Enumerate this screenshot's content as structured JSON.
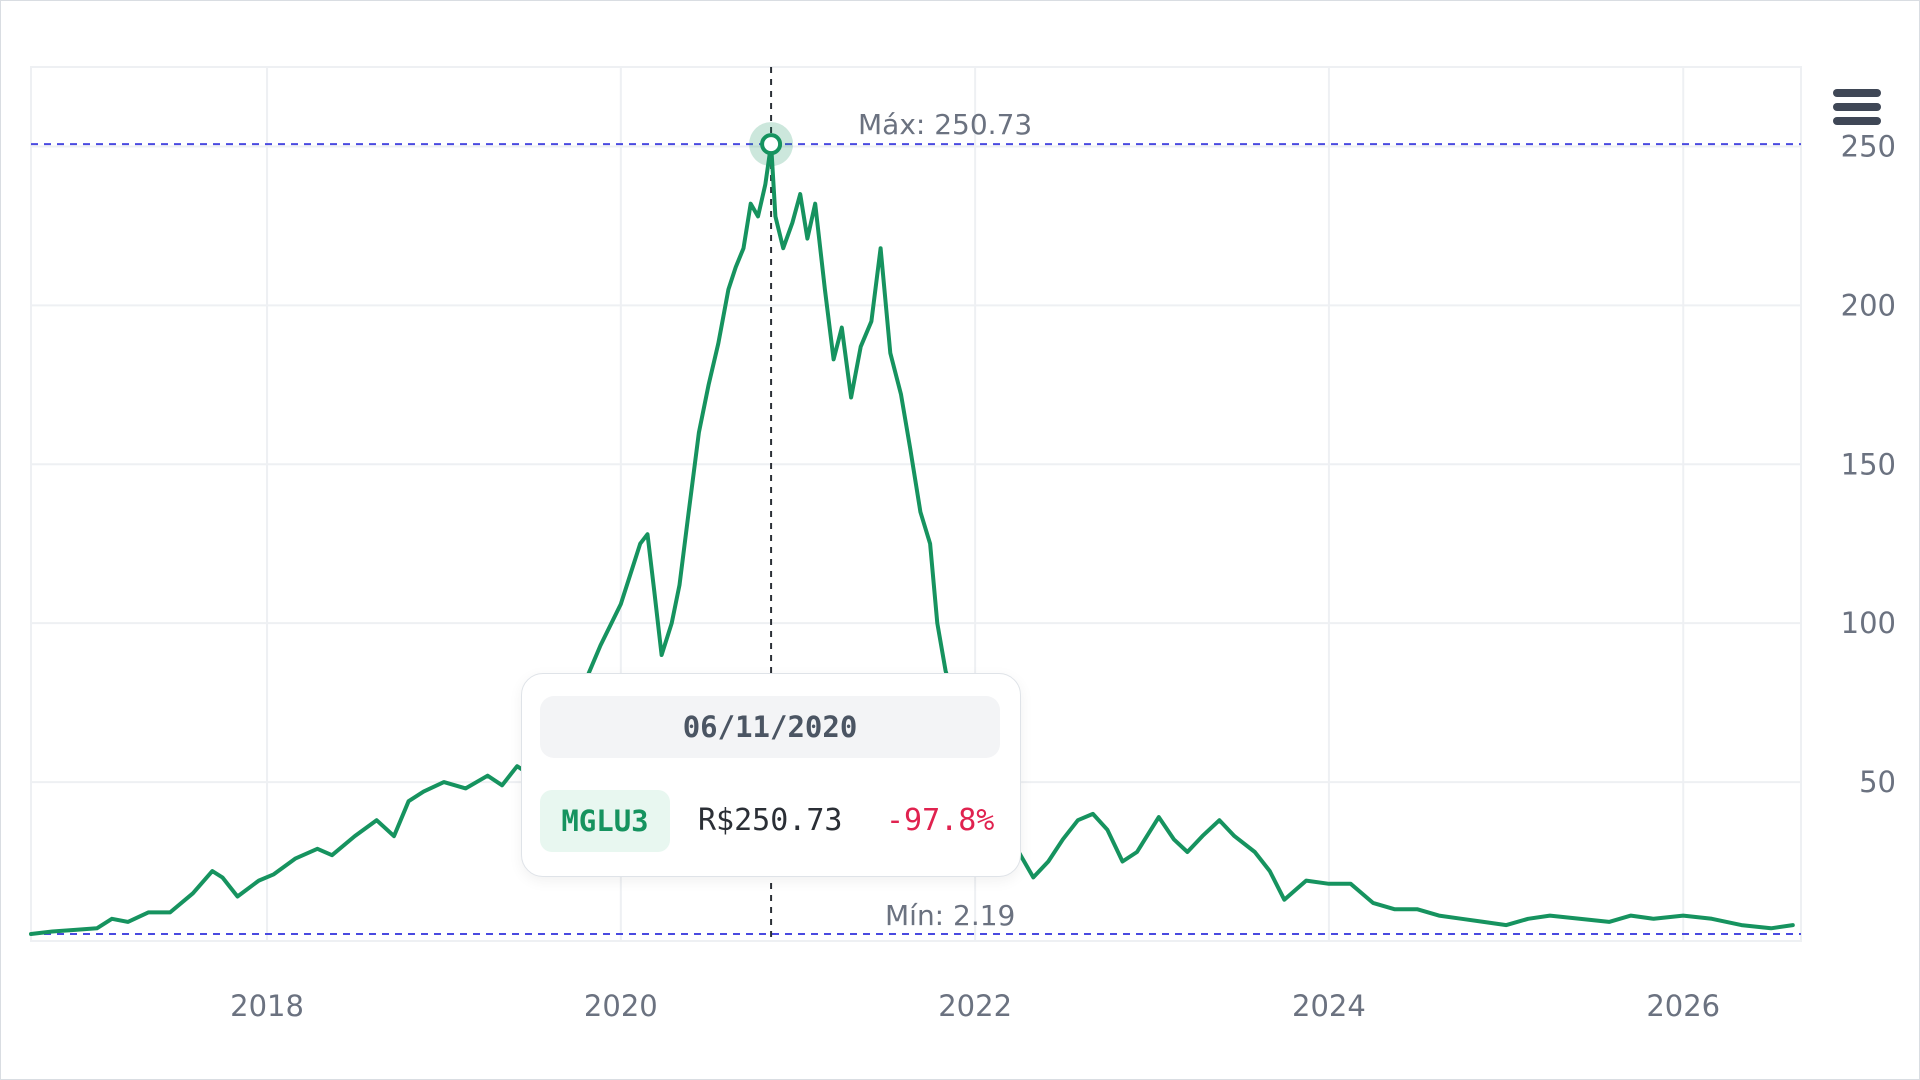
{
  "colors": {
    "line": "#16935f",
    "reference_line": "#4a4ae0",
    "crosshair": "#2b2f36",
    "grid": "#eef0f3",
    "negative": "#e0224f"
  },
  "toolbar": {
    "menu_icon": "hamburger-menu-icon"
  },
  "tooltip": {
    "date": "06/11/2020",
    "ticker": "MGLU3",
    "price": "R$250.73",
    "change": "-97.8%"
  },
  "chart_data": {
    "type": "line",
    "series": [
      {
        "name": "MGLU3",
        "points": [
          [
            "2016-09-01",
            2.19
          ],
          [
            "2016-10-15",
            3.0
          ],
          [
            "2016-12-01",
            3.5
          ],
          [
            "2017-01-15",
            4.0
          ],
          [
            "2017-02-15",
            7.0
          ],
          [
            "2017-03-20",
            6.0
          ],
          [
            "2017-05-01",
            9.0
          ],
          [
            "2017-06-15",
            9.0
          ],
          [
            "2017-08-01",
            15.0
          ],
          [
            "2017-09-10",
            22.0
          ],
          [
            "2017-10-01",
            20.0
          ],
          [
            "2017-11-01",
            14.0
          ],
          [
            "2017-12-15",
            19.0
          ],
          [
            "2018-01-15",
            21.0
          ],
          [
            "2018-03-01",
            26.0
          ],
          [
            "2018-04-15",
            29.0
          ],
          [
            "2018-05-15",
            27.0
          ],
          [
            "2018-07-01",
            33.0
          ],
          [
            "2018-08-15",
            38.0
          ],
          [
            "2018-09-20",
            33.0
          ],
          [
            "2018-10-20",
            44.0
          ],
          [
            "2018-11-20",
            47.0
          ],
          [
            "2019-01-01",
            50.0
          ],
          [
            "2019-02-15",
            48.0
          ],
          [
            "2019-04-01",
            52.0
          ],
          [
            "2019-05-01",
            49.0
          ],
          [
            "2019-06-01",
            55.0
          ],
          [
            "2019-07-01",
            52.0
          ],
          [
            "2019-08-01",
            60.0
          ],
          [
            "2019-09-10",
            72.0
          ],
          [
            "2019-10-15",
            80.0
          ],
          [
            "2019-11-20",
            93.0
          ],
          [
            "2020-01-01",
            106.0
          ],
          [
            "2020-01-20",
            115.0
          ],
          [
            "2020-02-10",
            125.0
          ],
          [
            "2020-02-25",
            128.0
          ],
          [
            "2020-03-10",
            110.0
          ],
          [
            "2020-03-25",
            90.0
          ],
          [
            "2020-04-15",
            100.0
          ],
          [
            "2020-05-01",
            112.0
          ],
          [
            "2020-05-20",
            135.0
          ],
          [
            "2020-06-10",
            160.0
          ],
          [
            "2020-06-30",
            175.0
          ],
          [
            "2020-07-20",
            188.0
          ],
          [
            "2020-08-10",
            205.0
          ],
          [
            "2020-08-25",
            212.0
          ],
          [
            "2020-09-10",
            218.0
          ],
          [
            "2020-09-25",
            232.0
          ],
          [
            "2020-10-10",
            228.0
          ],
          [
            "2020-10-25",
            238.0
          ],
          [
            "2020-11-06",
            250.73
          ],
          [
            "2020-11-15",
            228.0
          ],
          [
            "2020-12-01",
            218.0
          ],
          [
            "2020-12-20",
            226.0
          ],
          [
            "2021-01-05",
            235.0
          ],
          [
            "2021-01-20",
            221.0
          ],
          [
            "2021-02-05",
            232.0
          ],
          [
            "2021-02-25",
            205.0
          ],
          [
            "2021-03-15",
            183.0
          ],
          [
            "2021-04-01",
            193.0
          ],
          [
            "2021-04-20",
            171.0
          ],
          [
            "2021-05-10",
            187.0
          ],
          [
            "2021-06-01",
            195.0
          ],
          [
            "2021-06-20",
            218.0
          ],
          [
            "2021-07-10",
            185.0
          ],
          [
            "2021-08-01",
            172.0
          ],
          [
            "2021-08-20",
            155.0
          ],
          [
            "2021-09-10",
            135.0
          ],
          [
            "2021-09-30",
            125.0
          ],
          [
            "2021-10-15",
            100.0
          ],
          [
            "2021-11-01",
            85.0
          ],
          [
            "2021-12-01",
            70.0
          ],
          [
            "2022-01-01",
            60.0
          ],
          [
            "2022-02-01",
            50.0
          ],
          [
            "2022-03-01",
            40.0
          ],
          [
            "2022-04-01",
            28.0
          ],
          [
            "2022-05-01",
            20.0
          ],
          [
            "2022-06-01",
            25.0
          ],
          [
            "2022-07-01",
            32.0
          ],
          [
            "2022-08-01",
            38.0
          ],
          [
            "2022-09-01",
            40.0
          ],
          [
            "2022-10-01",
            35.0
          ],
          [
            "2022-11-01",
            25.0
          ],
          [
            "2022-12-01",
            28.0
          ],
          [
            "2023-01-15",
            39.0
          ],
          [
            "2023-02-15",
            32.0
          ],
          [
            "2023-03-15",
            28.0
          ],
          [
            "2023-04-15",
            33.0
          ],
          [
            "2023-05-20",
            38.0
          ],
          [
            "2023-06-20",
            33.0
          ],
          [
            "2023-08-01",
            28.0
          ],
          [
            "2023-09-01",
            22.0
          ],
          [
            "2023-10-01",
            13.0
          ],
          [
            "2023-11-15",
            19.0
          ],
          [
            "2024-01-01",
            18.0
          ],
          [
            "2024-02-15",
            18.0
          ],
          [
            "2024-04-01",
            12.0
          ],
          [
            "2024-05-15",
            10.0
          ],
          [
            "2024-07-01",
            10.0
          ],
          [
            "2024-08-15",
            8.0
          ],
          [
            "2024-10-01",
            7.0
          ],
          [
            "2024-11-15",
            6.0
          ],
          [
            "2025-01-01",
            5.0
          ],
          [
            "2025-02-15",
            7.0
          ],
          [
            "2025-04-01",
            8.0
          ],
          [
            "2025-06-01",
            7.0
          ],
          [
            "2025-08-01",
            6.0
          ],
          [
            "2025-09-15",
            8.0
          ],
          [
            "2025-11-01",
            7.0
          ],
          [
            "2026-01-01",
            8.0
          ],
          [
            "2026-03-01",
            7.0
          ],
          [
            "2026-05-01",
            5.0
          ],
          [
            "2026-07-01",
            4.0
          ],
          [
            "2026-08-15",
            5.0
          ]
        ]
      }
    ],
    "x_axis": {
      "ticks": [
        "2018",
        "2020",
        "2022",
        "2024",
        "2026"
      ],
      "range": [
        "2016-09-01",
        "2026-09-01"
      ]
    },
    "y_axis": {
      "ticks": [
        50,
        100,
        150,
        200,
        250
      ],
      "range": [
        0,
        275
      ],
      "position": "right"
    },
    "max_line": {
      "label": "Máx: 250.73",
      "value": 250.73
    },
    "min_line": {
      "label": "Mín: 2.19",
      "value": 2.19
    },
    "crosshair": {
      "x": "2020-11-06",
      "value": 250.73
    },
    "grid": true,
    "legend": "none"
  }
}
